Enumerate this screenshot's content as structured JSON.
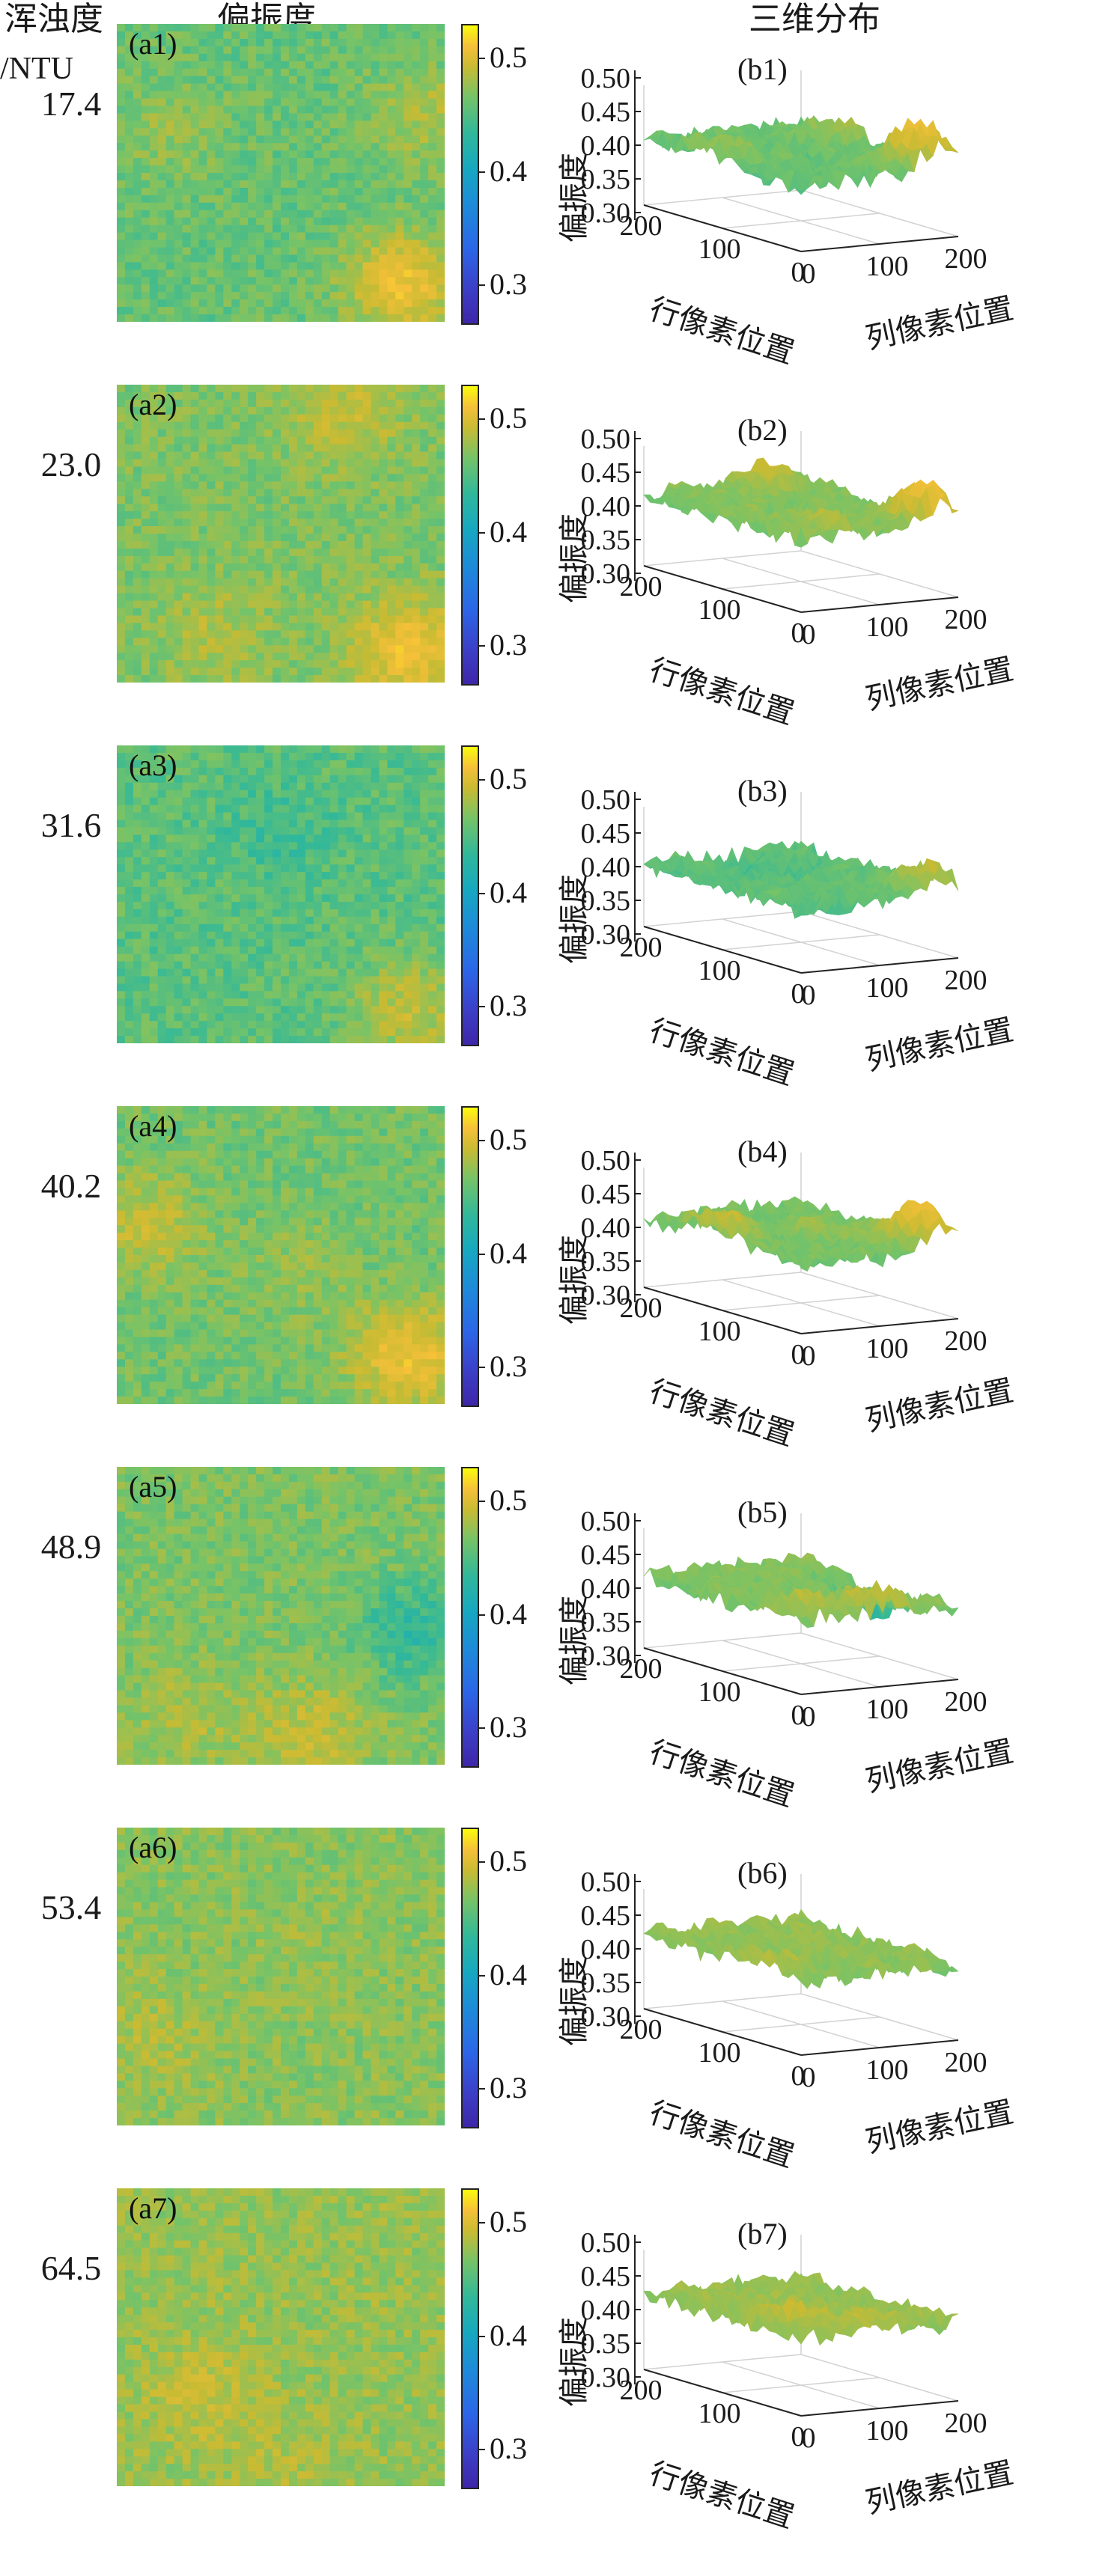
{
  "header": {
    "turbidity_title": "浑浊度",
    "turbidity_unit": "/NTU",
    "dop_title": "偏振度",
    "dist_title": "三维分布"
  },
  "colors": {
    "colormap": [
      "#3e26a8",
      "#2c66e8",
      "#17a8c0",
      "#31b89a",
      "#76c368",
      "#c8bb33",
      "#f6c039",
      "#f9fb0e"
    ]
  },
  "chart_data": [
    {
      "type": "heatmap",
      "turbidity": "17.4",
      "panel_a": "(a1)",
      "panel_b": "(b1)",
      "colorbar_ticks": [
        "0.5",
        "0.4",
        "0.3"
      ],
      "z_ticks": [
        "0.50",
        "0.45",
        "0.40",
        "0.35",
        "0.30"
      ],
      "row_ticks": [
        "200",
        "100",
        "0"
      ],
      "col_ticks": [
        "0",
        "100",
        "200"
      ],
      "zlabel": "偏振度",
      "row_label": "行像素位置",
      "col_label": "列像素位置",
      "clim": [
        0.28,
        0.52
      ],
      "base_value": 0.41,
      "hotspots": [
        [
          0.88,
          0.88,
          0.48
        ],
        [
          0.15,
          0.35,
          0.43
        ],
        [
          0.95,
          0.3,
          0.44
        ]
      ]
    },
    {
      "type": "heatmap",
      "turbidity": "23.0",
      "panel_a": "(a2)",
      "panel_b": "(b2)",
      "colorbar_ticks": [
        "0.5",
        "0.4",
        "0.3"
      ],
      "z_ticks": [
        "0.50",
        "0.45",
        "0.40",
        "0.35",
        "0.30"
      ],
      "row_ticks": [
        "200",
        "100",
        "0"
      ],
      "col_ticks": [
        "0",
        "100",
        "200"
      ],
      "zlabel": "偏振度",
      "row_label": "行像素位置",
      "col_label": "列像素位置",
      "clim": [
        0.28,
        0.52
      ],
      "base_value": 0.42,
      "hotspots": [
        [
          0.9,
          0.9,
          0.48
        ],
        [
          0.7,
          0.08,
          0.45
        ],
        [
          0.3,
          0.85,
          0.44
        ]
      ]
    },
    {
      "type": "heatmap",
      "turbidity": "31.6",
      "panel_a": "(a3)",
      "panel_b": "(b3)",
      "colorbar_ticks": [
        "0.5",
        "0.4",
        "0.3"
      ],
      "z_ticks": [
        "0.50",
        "0.45",
        "0.40",
        "0.35",
        "0.30"
      ],
      "row_ticks": [
        "200",
        "100",
        "0"
      ],
      "col_ticks": [
        "0",
        "100",
        "200"
      ],
      "zlabel": "偏振度",
      "row_label": "行像素位置",
      "col_label": "列像素位置",
      "clim": [
        0.28,
        0.52
      ],
      "base_value": 0.405,
      "hotspots": [
        [
          0.9,
          0.9,
          0.45
        ],
        [
          0.5,
          0.3,
          0.39
        ]
      ]
    },
    {
      "type": "heatmap",
      "turbidity": "40.2",
      "panel_a": "(a4)",
      "panel_b": "(b4)",
      "colorbar_ticks": [
        "0.5",
        "0.4",
        "0.3"
      ],
      "z_ticks": [
        "0.50",
        "0.45",
        "0.40",
        "0.35",
        "0.30"
      ],
      "row_ticks": [
        "200",
        "100",
        "0"
      ],
      "col_ticks": [
        "0",
        "100",
        "200"
      ],
      "zlabel": "偏振度",
      "row_label": "行像素位置",
      "col_label": "列像素位置",
      "clim": [
        0.28,
        0.52
      ],
      "base_value": 0.415,
      "hotspots": [
        [
          0.9,
          0.85,
          0.48
        ],
        [
          0.08,
          0.4,
          0.45
        ],
        [
          0.55,
          0.55,
          0.43
        ]
      ]
    },
    {
      "type": "heatmap",
      "turbidity": "48.9",
      "panel_a": "(a5)",
      "panel_b": "(b5)",
      "colorbar_ticks": [
        "0.5",
        "0.4",
        "0.3"
      ],
      "z_ticks": [
        "0.50",
        "0.45",
        "0.40",
        "0.35",
        "0.30"
      ],
      "row_ticks": [
        "200",
        "100",
        "0"
      ],
      "col_ticks": [
        "0",
        "100",
        "200"
      ],
      "zlabel": "偏振度",
      "row_label": "行像素位置",
      "col_label": "列像素位置",
      "clim": [
        0.28,
        0.52
      ],
      "base_value": 0.42,
      "hotspots": [
        [
          0.2,
          0.85,
          0.44
        ],
        [
          0.6,
          0.9,
          0.45
        ],
        [
          0.92,
          0.55,
          0.38
        ]
      ]
    },
    {
      "type": "heatmap",
      "turbidity": "53.4",
      "panel_a": "(a6)",
      "panel_b": "(b6)",
      "colorbar_ticks": [
        "0.5",
        "0.4",
        "0.3"
      ],
      "z_ticks": [
        "0.50",
        "0.45",
        "0.40",
        "0.35",
        "0.30"
      ],
      "row_ticks": [
        "200",
        "100",
        "0"
      ],
      "col_ticks": [
        "0",
        "100",
        "200"
      ],
      "zlabel": "偏振度",
      "row_label": "行像素位置",
      "col_label": "列像素位置",
      "clim": [
        0.28,
        0.52
      ],
      "base_value": 0.425,
      "hotspots": [
        [
          0.1,
          0.7,
          0.44
        ],
        [
          0.6,
          0.4,
          0.43
        ]
      ]
    },
    {
      "type": "heatmap",
      "turbidity": "64.5",
      "panel_a": "(a7)",
      "panel_b": "(b7)",
      "colorbar_ticks": [
        "0.5",
        "0.4",
        "0.3"
      ],
      "z_ticks": [
        "0.50",
        "0.45",
        "0.40",
        "0.35",
        "0.30"
      ],
      "row_ticks": [
        "200",
        "100",
        "0"
      ],
      "col_ticks": [
        "0",
        "100",
        "200"
      ],
      "zlabel": "偏振度",
      "row_label": "行像素位置",
      "col_label": "列像素位置",
      "clim": [
        0.28,
        0.52
      ],
      "base_value": 0.43,
      "hotspots": [
        [
          0.25,
          0.7,
          0.45
        ],
        [
          0.5,
          0.9,
          0.44
        ]
      ]
    }
  ]
}
